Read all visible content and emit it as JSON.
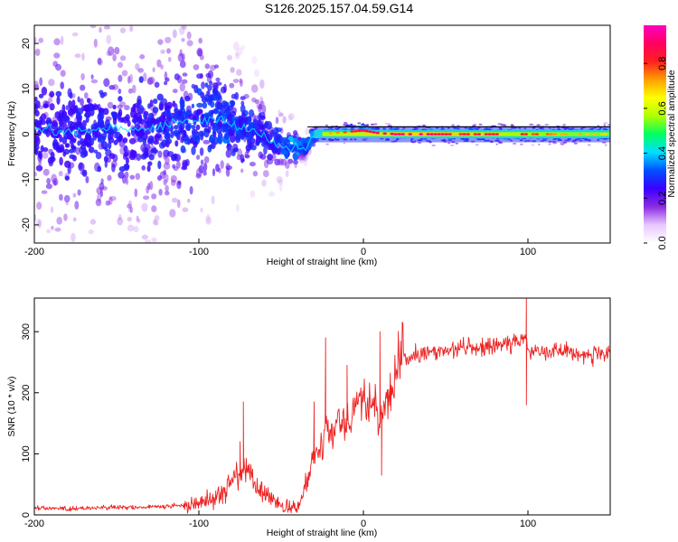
{
  "title": "S126.2025.157.04.59.G14",
  "colors": {
    "snr_line": "#ee2222",
    "spectrum_core": "#20d0e0",
    "axis": "#000000"
  },
  "chart_data": [
    {
      "type": "heatmap",
      "xlabel": "Height of straight line (km)",
      "ylabel": "Frequency (Hz)",
      "xlim": [
        -200,
        150
      ],
      "ylim": [
        -24,
        24
      ],
      "x_ticks": [
        -200,
        -100,
        0,
        100
      ],
      "y_ticks": [
        -20,
        -10,
        0,
        10,
        20
      ],
      "colorbar": {
        "label": "Normalized spectral amplitude",
        "range": [
          0,
          0.97
        ],
        "ticks": [
          0.0,
          0.2,
          0.4,
          0.6,
          0.8
        ],
        "tick_labels": [
          "0.0",
          "0.2",
          "0.4",
          "0.6",
          "0.8"
        ],
        "colormap": [
          "#ffffff",
          "#e8c8ff",
          "#8a2be2",
          "#3a00ff",
          "#0050ff",
          "#00e0ff",
          "#00ff60",
          "#b0ff00",
          "#ffff00",
          "#ffa000",
          "#ff2020",
          "#ff0060",
          "#ff00c0"
        ]
      },
      "ridge": {
        "x": [
          -200,
          -180,
          -160,
          -140,
          -120,
          -100,
          -90,
          -80,
          -70,
          -60,
          -55,
          -50,
          -45,
          -40,
          -35,
          -32,
          -30,
          -25,
          -20,
          -10,
          0,
          5,
          10,
          20,
          40,
          60,
          80,
          100,
          120,
          150
        ],
        "freq": [
          1.5,
          0.5,
          1.5,
          1.0,
          2.0,
          3.0,
          3.5,
          2.0,
          1.0,
          -0.5,
          -1.5,
          -2.5,
          -3.0,
          -3.0,
          -3.0,
          -1.0,
          -0.5,
          0.0,
          0.2,
          0.5,
          0.8,
          0.5,
          0.2,
          0.0,
          0.0,
          0.0,
          0.0,
          0.0,
          0.0,
          0.0
        ],
        "amplitude": [
          0.25,
          0.3,
          0.35,
          0.3,
          0.35,
          0.4,
          0.45,
          0.45,
          0.4,
          0.35,
          0.35,
          0.45,
          0.55,
          0.6,
          0.5,
          0.6,
          0.65,
          0.7,
          0.75,
          0.85,
          0.9,
          0.9,
          0.95,
          0.95,
          0.95,
          0.85,
          0.9,
          0.85,
          0.75,
          0.7
        ],
        "spread_hz": [
          10,
          10,
          9,
          9,
          8,
          8,
          6,
          5,
          4,
          4,
          3,
          2.5,
          2,
          1.5,
          1.5,
          1.5,
          1.5,
          1.2,
          1.2,
          1.2,
          1.2,
          1.0,
          1.0,
          1.0,
          1.2,
          1.2,
          1.2,
          1.2,
          1.2,
          1.2
        ]
      }
    },
    {
      "type": "line",
      "xlabel": "Height of straight line (km)",
      "ylabel": "SNR (10 * v/v)",
      "xlim": [
        -200,
        150
      ],
      "ylim": [
        0,
        355
      ],
      "x_ticks": [
        -200,
        -100,
        0,
        100
      ],
      "y_ticks": [
        0,
        100,
        200,
        300
      ],
      "series": [
        {
          "x": [
            -200,
            -180,
            -160,
            -140,
            -120,
            -110,
            -100,
            -90,
            -85,
            -80,
            -75,
            -72,
            -70,
            -65,
            -60,
            -55,
            -50,
            -45,
            -40,
            -37,
            -35,
            -32,
            -30,
            -28,
            -25,
            -23,
            -20,
            -18,
            -15,
            -12,
            -10,
            -8,
            -5,
            -2,
            0,
            3,
            5,
            8,
            10,
            12,
            15,
            18,
            20,
            25,
            30,
            40,
            50,
            60,
            70,
            80,
            90,
            95,
            99,
            100,
            105,
            110,
            120,
            130,
            140,
            150
          ],
          "y": [
            12,
            10,
            12,
            12,
            14,
            15,
            20,
            30,
            40,
            55,
            70,
            75,
            65,
            45,
            35,
            25,
            15,
            10,
            10,
            30,
            50,
            80,
            100,
            120,
            115,
            150,
            145,
            130,
            160,
            155,
            155,
            170,
            180,
            185,
            190,
            185,
            180,
            170,
            150,
            170,
            190,
            215,
            240,
            255,
            260,
            265,
            270,
            275,
            272,
            278,
            280,
            285,
            290,
            265,
            272,
            270,
            268,
            265,
            262,
            262
          ],
          "spikes": [
            {
              "x": -73,
              "y": 185
            },
            {
              "x": -75,
              "y": 120
            },
            {
              "x": -23,
              "y": 290
            },
            {
              "x": -30,
              "y": 185
            },
            {
              "x": -10,
              "y": 245
            },
            {
              "x": 10,
              "y": 300
            },
            {
              "x": 11,
              "y": 65
            },
            {
              "x": 99,
              "y": 355
            },
            {
              "x": 99,
              "y": 180
            }
          ]
        }
      ]
    }
  ]
}
